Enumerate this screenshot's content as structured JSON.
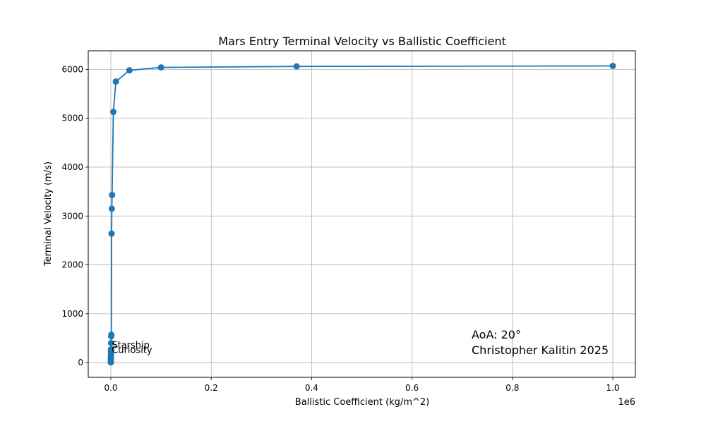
{
  "chart_data": {
    "type": "line",
    "title": "Mars Entry Terminal Velocity vs Ballistic Coefficient",
    "xlabel": "Ballistic Coefficient (kg/m^2)",
    "ylabel": "Terminal Velocity (m/s)",
    "x_offset_label": "1e6",
    "x_scale": 1000000,
    "xlim": [
      -45000,
      1045000
    ],
    "ylim": [
      -300,
      6380
    ],
    "x_ticks": [
      0,
      200000,
      400000,
      600000,
      800000,
      1000000
    ],
    "x_tick_labels": [
      "0.0",
      "0.2",
      "0.4",
      "0.6",
      "0.8",
      "1.0"
    ],
    "y_ticks": [
      0,
      1000,
      2000,
      3000,
      4000,
      5000,
      6000
    ],
    "y_tick_labels": [
      "0",
      "1000",
      "2000",
      "3000",
      "4000",
      "5000",
      "6000"
    ],
    "grid": true,
    "series": [
      {
        "color": "#1f77b4",
        "points": [
          {
            "x": 10,
            "y": 5
          },
          {
            "x": 30,
            "y": 25
          },
          {
            "x": 60,
            "y": 60
          },
          {
            "x": 100,
            "y": 100
          },
          {
            "x": 150,
            "y": 160
          },
          {
            "x": 200,
            "y": 230
          },
          {
            "x": 300,
            "y": 270
          },
          {
            "x": 500,
            "y": 400
          },
          {
            "x": 800,
            "y": 540
          },
          {
            "x": 1000,
            "y": 570
          },
          {
            "x": 1500,
            "y": 2640
          },
          {
            "x": 2000,
            "y": 3150
          },
          {
            "x": 2500,
            "y": 3430
          },
          {
            "x": 5000,
            "y": 5130
          },
          {
            "x": 10000,
            "y": 5750
          },
          {
            "x": 37000,
            "y": 5980
          },
          {
            "x": 100000,
            "y": 6040
          },
          {
            "x": 370000,
            "y": 6060
          },
          {
            "x": 1000000,
            "y": 6070
          }
        ]
      }
    ],
    "point_labels": [
      {
        "text": "Starship",
        "x": 500,
        "y": 370
      },
      {
        "text": "Curiosity",
        "x": 300,
        "y": 270
      }
    ],
    "annotation_lines": [
      "AoA: 20°",
      "Christopher Kalitin 2025"
    ]
  }
}
